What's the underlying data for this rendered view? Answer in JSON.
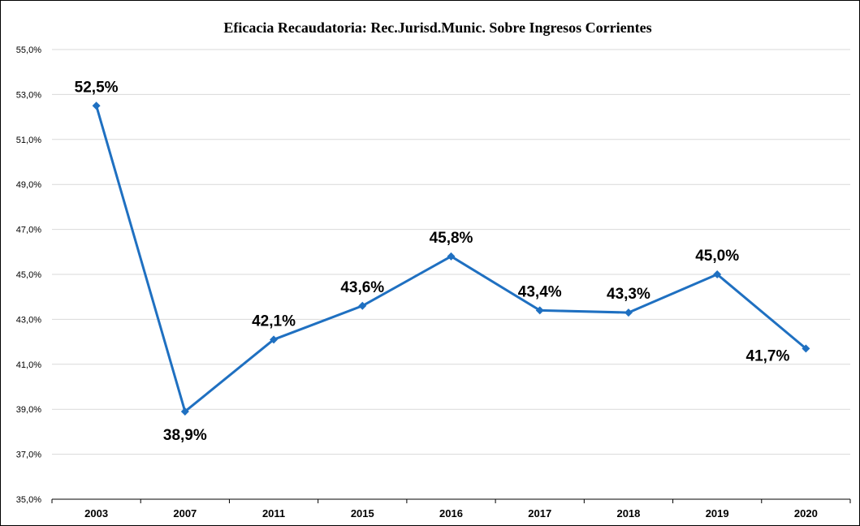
{
  "chart_data": {
    "type": "line",
    "title": "Eficacia Recaudatoria: Rec.Jurisd.Munic. Sobre Ingresos Corrientes",
    "xlabel": "",
    "ylabel": "",
    "categories": [
      "2003",
      "2007",
      "2011",
      "2015",
      "2016",
      "2017",
      "2018",
      "2019",
      "2020"
    ],
    "series": [
      {
        "values": [
          52.5,
          38.9,
          42.1,
          43.6,
          45.8,
          43.4,
          43.3,
          45.0,
          41.7
        ],
        "labels": [
          "52,5%",
          "38,9%",
          "42,1%",
          "43,6%",
          "45,8%",
          "43,4%",
          "43,3%",
          "45,0%",
          "41,7%"
        ],
        "label_position": [
          "above",
          "below",
          "above",
          "above",
          "above",
          "above",
          "above",
          "above",
          "left"
        ]
      }
    ],
    "ylim": [
      35,
      55
    ],
    "yticks": [
      35,
      37,
      39,
      41,
      43,
      45,
      47,
      49,
      51,
      53,
      55
    ],
    "ytick_labels": [
      "35,0%",
      "37,0%",
      "39,0%",
      "41,0%",
      "43,0%",
      "45,0%",
      "47,0%",
      "49,0%",
      "51,0%",
      "53,0%",
      "55,0%"
    ],
    "grid": true,
    "legend": "none",
    "line_color": "#1f70c1"
  }
}
